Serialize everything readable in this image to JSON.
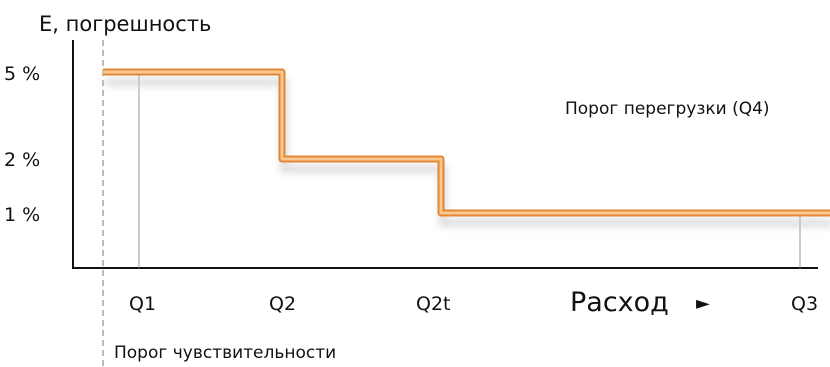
{
  "chart_data": {
    "type": "line",
    "title": "",
    "ylabel": "E, погрешность",
    "xlabel": "Расход",
    "x_arrow": "►",
    "x_categories": [
      "Q1",
      "Q2",
      "Q2t",
      "Q3"
    ],
    "y_ticks": [
      "5 %",
      "2 %",
      "1 %"
    ],
    "series": [
      {
        "values": [
          {
            "x": "Q1",
            "y": 5
          },
          {
            "x": "Q2",
            "y": 5
          },
          {
            "x": "Q2",
            "y": 2
          },
          {
            "x": "Q2t",
            "y": 2
          },
          {
            "x": "Q2t",
            "y": 1
          },
          {
            "x": "Q3",
            "y": 1
          }
        ]
      }
    ],
    "annotations": {
      "sensitivity_threshold": "Порог чувствительности",
      "overload_threshold": "Порог перегрузки (Q4)"
    },
    "colors": {
      "line": "#f2a65a",
      "line_dark": "#e0873a",
      "shadow": "#c9c9c9",
      "axis": "#111111",
      "grid": "#dddddd"
    },
    "grid": true
  }
}
